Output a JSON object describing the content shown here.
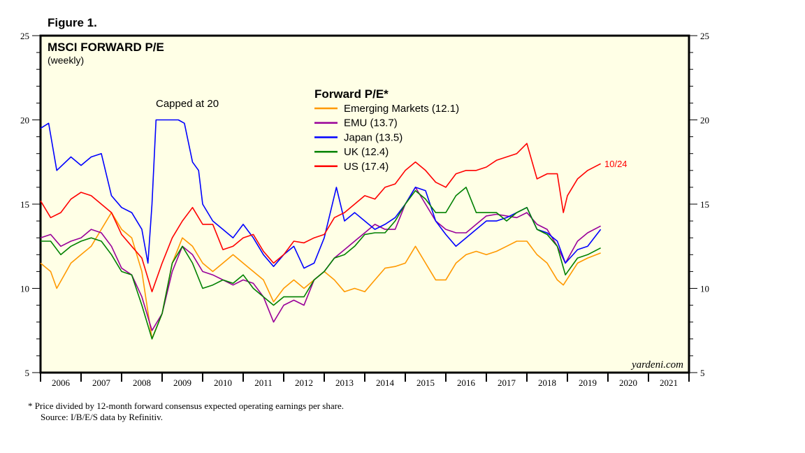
{
  "figure_label": "Figure 1.",
  "footnote": "*  Price divided by 12-month forward consensus expected operating earnings per share.",
  "source": "Source: I/B/E/S data by Refinitiv.",
  "chart_data": {
    "type": "line",
    "title": "MSCI FORWARD P/E",
    "subtitle": "(weekly)",
    "legend_title": "Forward P/E*",
    "legend_placement": "top-center",
    "annotation": "Capped at 20",
    "end_label": "10/24",
    "watermark": "yardeni.com",
    "ylim": [
      5,
      25
    ],
    "yticks": [
      "25",
      "20",
      "15",
      "10",
      "5"
    ],
    "xlim": [
      2006,
      2022
    ],
    "xticks": [
      "2006",
      "2007",
      "2008",
      "2009",
      "2010",
      "2011",
      "2012",
      "2013",
      "2014",
      "2015",
      "2016",
      "2017",
      "2018",
      "2019",
      "2020",
      "2021"
    ],
    "series": [
      {
        "name": "Emerging Markets (12.1)",
        "color": "#ff9900",
        "points": [
          [
            2006,
            11.5
          ],
          [
            2006.25,
            11
          ],
          [
            2006.4,
            10
          ],
          [
            2006.75,
            11.5
          ],
          [
            2007,
            12
          ],
          [
            2007.25,
            12.5
          ],
          [
            2007.5,
            13.5
          ],
          [
            2007.75,
            14.5
          ],
          [
            2008,
            13.5
          ],
          [
            2008.25,
            13
          ],
          [
            2008.5,
            11
          ],
          [
            2008.75,
            7
          ],
          [
            2009,
            8.5
          ],
          [
            2009.25,
            11.5
          ],
          [
            2009.5,
            13
          ],
          [
            2009.75,
            12.5
          ],
          [
            2010,
            11.5
          ],
          [
            2010.25,
            11
          ],
          [
            2010.5,
            11.5
          ],
          [
            2010.75,
            12
          ],
          [
            2011,
            11.5
          ],
          [
            2011.25,
            11
          ],
          [
            2011.5,
            10.5
          ],
          [
            2011.75,
            9.2
          ],
          [
            2012,
            10
          ],
          [
            2012.25,
            10.5
          ],
          [
            2012.5,
            10
          ],
          [
            2012.75,
            10.5
          ],
          [
            2013,
            11
          ],
          [
            2013.25,
            10.5
          ],
          [
            2013.5,
            9.8
          ],
          [
            2013.75,
            10
          ],
          [
            2014,
            9.8
          ],
          [
            2014.25,
            10.5
          ],
          [
            2014.5,
            11.2
          ],
          [
            2014.75,
            11.3
          ],
          [
            2015,
            11.5
          ],
          [
            2015.25,
            12.5
          ],
          [
            2015.5,
            11.5
          ],
          [
            2015.75,
            10.5
          ],
          [
            2016,
            10.5
          ],
          [
            2016.25,
            11.5
          ],
          [
            2016.5,
            12
          ],
          [
            2016.75,
            12.2
          ],
          [
            2017,
            12
          ],
          [
            2017.25,
            12.2
          ],
          [
            2017.5,
            12.5
          ],
          [
            2017.75,
            12.8
          ],
          [
            2018,
            12.8
          ],
          [
            2018.25,
            12
          ],
          [
            2018.5,
            11.5
          ],
          [
            2018.75,
            10.5
          ],
          [
            2018.9,
            10.2
          ],
          [
            2019.25,
            11.5
          ],
          [
            2019.5,
            11.8
          ],
          [
            2019.82,
            12.1
          ]
        ]
      },
      {
        "name": "EMU (13.7)",
        "color": "#990099",
        "points": [
          [
            2006,
            13
          ],
          [
            2006.25,
            13.2
          ],
          [
            2006.5,
            12.5
          ],
          [
            2006.75,
            12.8
          ],
          [
            2007,
            13
          ],
          [
            2007.25,
            13.5
          ],
          [
            2007.5,
            13.3
          ],
          [
            2007.75,
            12.5
          ],
          [
            2008,
            11.2
          ],
          [
            2008.25,
            10.8
          ],
          [
            2008.5,
            9.5
          ],
          [
            2008.75,
            7.5
          ],
          [
            2009,
            8.5
          ],
          [
            2009.25,
            11
          ],
          [
            2009.5,
            12.5
          ],
          [
            2009.75,
            12
          ],
          [
            2010,
            11
          ],
          [
            2010.25,
            10.8
          ],
          [
            2010.5,
            10.5
          ],
          [
            2010.75,
            10.2
          ],
          [
            2011,
            10.5
          ],
          [
            2011.25,
            10.3
          ],
          [
            2011.5,
            9.5
          ],
          [
            2011.75,
            8
          ],
          [
            2012,
            9
          ],
          [
            2012.25,
            9.3
          ],
          [
            2012.5,
            9
          ],
          [
            2012.75,
            10.5
          ],
          [
            2013,
            11
          ],
          [
            2013.25,
            11.8
          ],
          [
            2013.5,
            12.3
          ],
          [
            2013.75,
            12.8
          ],
          [
            2014,
            13.3
          ],
          [
            2014.25,
            13.8
          ],
          [
            2014.5,
            13.5
          ],
          [
            2014.75,
            13.5
          ],
          [
            2015,
            15
          ],
          [
            2015.25,
            16
          ],
          [
            2015.5,
            15
          ],
          [
            2015.75,
            14
          ],
          [
            2016,
            13.5
          ],
          [
            2016.25,
            13.3
          ],
          [
            2016.5,
            13.3
          ],
          [
            2016.75,
            13.8
          ],
          [
            2017,
            14.3
          ],
          [
            2017.25,
            14.4
          ],
          [
            2017.5,
            14.3
          ],
          [
            2017.75,
            14.2
          ],
          [
            2018,
            14.5
          ],
          [
            2018.25,
            13.8
          ],
          [
            2018.5,
            13.5
          ],
          [
            2018.75,
            12.5
          ],
          [
            2018.95,
            11.5
          ],
          [
            2019.25,
            12.8
          ],
          [
            2019.5,
            13.3
          ],
          [
            2019.82,
            13.7
          ]
        ]
      },
      {
        "name": "Japan (13.5)",
        "color": "#0000ff",
        "points": [
          [
            2006,
            19.5
          ],
          [
            2006.2,
            19.8
          ],
          [
            2006.4,
            17
          ],
          [
            2006.75,
            17.8
          ],
          [
            2007,
            17.3
          ],
          [
            2007.25,
            17.8
          ],
          [
            2007.5,
            18
          ],
          [
            2007.75,
            15.5
          ],
          [
            2008,
            14.8
          ],
          [
            2008.25,
            14.5
          ],
          [
            2008.5,
            13.5
          ],
          [
            2008.65,
            11.5
          ],
          [
            2008.75,
            15
          ],
          [
            2008.85,
            20
          ],
          [
            2009,
            20
          ],
          [
            2009.25,
            20
          ],
          [
            2009.4,
            20
          ],
          [
            2009.55,
            19.8
          ],
          [
            2009.75,
            17.5
          ],
          [
            2009.9,
            17
          ],
          [
            2010,
            15
          ],
          [
            2010.25,
            14
          ],
          [
            2010.5,
            13.5
          ],
          [
            2010.75,
            13
          ],
          [
            2011,
            13.8
          ],
          [
            2011.25,
            13
          ],
          [
            2011.5,
            12
          ],
          [
            2011.75,
            11.3
          ],
          [
            2012,
            12
          ],
          [
            2012.25,
            12.5
          ],
          [
            2012.5,
            11.2
          ],
          [
            2012.75,
            11.5
          ],
          [
            2013,
            13
          ],
          [
            2013.3,
            16
          ],
          [
            2013.5,
            14
          ],
          [
            2013.75,
            14.5
          ],
          [
            2014,
            14
          ],
          [
            2014.25,
            13.5
          ],
          [
            2014.5,
            13.8
          ],
          [
            2014.75,
            14.2
          ],
          [
            2015,
            15
          ],
          [
            2015.25,
            16
          ],
          [
            2015.5,
            15.8
          ],
          [
            2015.75,
            14
          ],
          [
            2016,
            13.2
          ],
          [
            2016.25,
            12.5
          ],
          [
            2016.5,
            13
          ],
          [
            2016.75,
            13.5
          ],
          [
            2017,
            14
          ],
          [
            2017.25,
            14
          ],
          [
            2017.5,
            14.2
          ],
          [
            2017.75,
            14.5
          ],
          [
            2018,
            14.8
          ],
          [
            2018.25,
            13.5
          ],
          [
            2018.5,
            13.3
          ],
          [
            2018.75,
            12.8
          ],
          [
            2018.95,
            11.5
          ],
          [
            2019.25,
            12.3
          ],
          [
            2019.5,
            12.5
          ],
          [
            2019.82,
            13.5
          ]
        ]
      },
      {
        "name": "UK (12.4)",
        "color": "#008000",
        "points": [
          [
            2006,
            12.8
          ],
          [
            2006.25,
            12.8
          ],
          [
            2006.5,
            12
          ],
          [
            2006.75,
            12.5
          ],
          [
            2007,
            12.8
          ],
          [
            2007.25,
            13
          ],
          [
            2007.5,
            12.8
          ],
          [
            2007.75,
            12
          ],
          [
            2008,
            11
          ],
          [
            2008.25,
            10.8
          ],
          [
            2008.5,
            9
          ],
          [
            2008.75,
            7
          ],
          [
            2009,
            8.5
          ],
          [
            2009.25,
            11.5
          ],
          [
            2009.5,
            12.5
          ],
          [
            2009.75,
            11.5
          ],
          [
            2010,
            10
          ],
          [
            2010.25,
            10.2
          ],
          [
            2010.5,
            10.5
          ],
          [
            2010.75,
            10.3
          ],
          [
            2011,
            10.8
          ],
          [
            2011.25,
            10
          ],
          [
            2011.5,
            9.5
          ],
          [
            2011.75,
            9
          ],
          [
            2012,
            9.5
          ],
          [
            2012.25,
            9.5
          ],
          [
            2012.5,
            9.5
          ],
          [
            2012.75,
            10.5
          ],
          [
            2013,
            11
          ],
          [
            2013.25,
            11.8
          ],
          [
            2013.5,
            12
          ],
          [
            2013.75,
            12.5
          ],
          [
            2014,
            13.2
          ],
          [
            2014.25,
            13.3
          ],
          [
            2014.5,
            13.3
          ],
          [
            2014.75,
            14
          ],
          [
            2015,
            15
          ],
          [
            2015.25,
            15.8
          ],
          [
            2015.5,
            15.3
          ],
          [
            2015.75,
            14.5
          ],
          [
            2016,
            14.5
          ],
          [
            2016.25,
            15.5
          ],
          [
            2016.5,
            16
          ],
          [
            2016.75,
            14.5
          ],
          [
            2017,
            14.5
          ],
          [
            2017.25,
            14.5
          ],
          [
            2017.5,
            14
          ],
          [
            2017.75,
            14.5
          ],
          [
            2018,
            14.8
          ],
          [
            2018.25,
            13.5
          ],
          [
            2018.5,
            13.2
          ],
          [
            2018.75,
            12.5
          ],
          [
            2018.95,
            10.8
          ],
          [
            2019.25,
            11.8
          ],
          [
            2019.5,
            12
          ],
          [
            2019.82,
            12.4
          ]
        ]
      },
      {
        "name": "US (17.4)",
        "color": "#ff0000",
        "points": [
          [
            2006,
            15.2
          ],
          [
            2006.25,
            14.2
          ],
          [
            2006.5,
            14.5
          ],
          [
            2006.75,
            15.3
          ],
          [
            2007,
            15.7
          ],
          [
            2007.25,
            15.5
          ],
          [
            2007.5,
            15
          ],
          [
            2007.75,
            14.5
          ],
          [
            2008,
            13.2
          ],
          [
            2008.25,
            12.5
          ],
          [
            2008.5,
            11.8
          ],
          [
            2008.75,
            9.8
          ],
          [
            2009,
            11.5
          ],
          [
            2009.25,
            13
          ],
          [
            2009.5,
            14
          ],
          [
            2009.75,
            14.8
          ],
          [
            2010,
            13.8
          ],
          [
            2010.25,
            13.8
          ],
          [
            2010.5,
            12.3
          ],
          [
            2010.75,
            12.5
          ],
          [
            2011,
            13
          ],
          [
            2011.25,
            13.2
          ],
          [
            2011.5,
            12.2
          ],
          [
            2011.75,
            11.5
          ],
          [
            2012,
            12
          ],
          [
            2012.25,
            12.8
          ],
          [
            2012.5,
            12.7
          ],
          [
            2012.75,
            13
          ],
          [
            2013,
            13.2
          ],
          [
            2013.25,
            14.2
          ],
          [
            2013.5,
            14.5
          ],
          [
            2013.75,
            15
          ],
          [
            2014,
            15.5
          ],
          [
            2014.25,
            15.3
          ],
          [
            2014.5,
            16
          ],
          [
            2014.75,
            16.2
          ],
          [
            2015,
            17
          ],
          [
            2015.25,
            17.5
          ],
          [
            2015.5,
            17
          ],
          [
            2015.75,
            16.3
          ],
          [
            2016,
            16
          ],
          [
            2016.25,
            16.8
          ],
          [
            2016.5,
            17
          ],
          [
            2016.75,
            17
          ],
          [
            2017,
            17.2
          ],
          [
            2017.25,
            17.6
          ],
          [
            2017.5,
            17.8
          ],
          [
            2017.75,
            18
          ],
          [
            2018,
            18.6
          ],
          [
            2018.25,
            16.5
          ],
          [
            2018.5,
            16.8
          ],
          [
            2018.75,
            16.8
          ],
          [
            2018.9,
            14.5
          ],
          [
            2019,
            15.5
          ],
          [
            2019.25,
            16.5
          ],
          [
            2019.5,
            17
          ],
          [
            2019.82,
            17.4
          ]
        ]
      }
    ]
  }
}
